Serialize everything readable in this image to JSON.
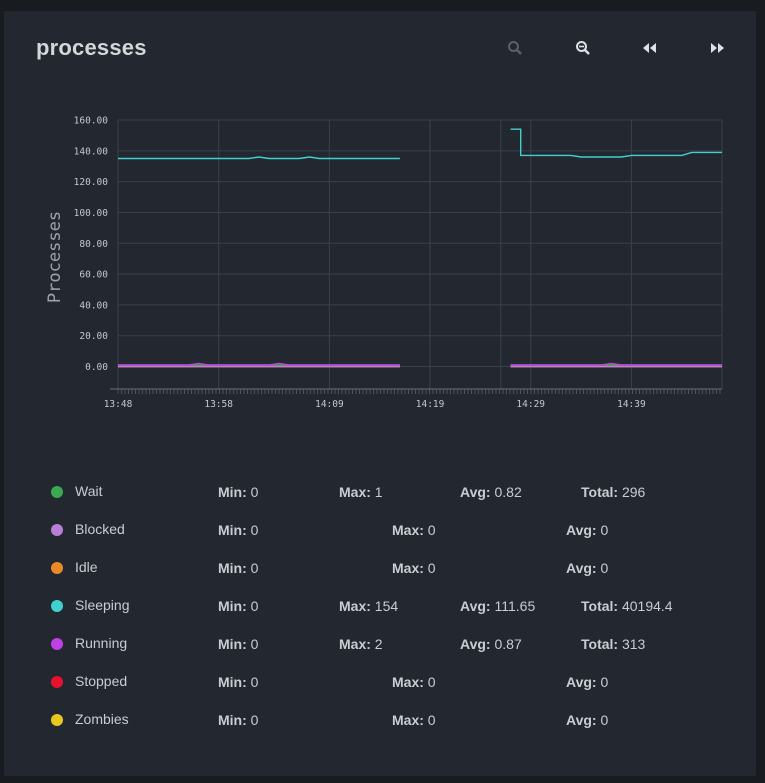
{
  "panel": {
    "title": "processes",
    "toolbar": {
      "zoom_in_icon": "magnifier-plus-icon",
      "zoom_out_icon": "magnifier-minus-icon",
      "back_icon": "rewind-icon",
      "forward_icon": "fast-forward-icon"
    }
  },
  "chart_data": {
    "type": "line",
    "title": "",
    "ylabel": "Processes",
    "xlabel": "",
    "ylim": [
      0,
      160
    ],
    "y_ticks": [
      "0.00",
      "20.00",
      "40.00",
      "60.00",
      "80.00",
      "100.00",
      "120.00",
      "140.00",
      "160.00"
    ],
    "x_ticks": [
      "13:48",
      "13:58",
      "14:09",
      "14:19",
      "14:29",
      "14:39"
    ],
    "x_range": [
      "13:48",
      "14:48"
    ],
    "grid": true,
    "series": [
      {
        "name": "Sleeping",
        "color": "#40d0d0",
        "segments": [
          [
            [
              "13:48",
              135
            ],
            [
              "14:01",
              135
            ],
            [
              "14:02",
              136
            ],
            [
              "14:03",
              135
            ],
            [
              "14:06",
              135
            ],
            [
              "14:07",
              136
            ],
            [
              "14:08",
              135
            ],
            [
              "14:16",
              135
            ]
          ],
          [
            [
              "14:27",
              154
            ],
            [
              "14:28",
              154
            ],
            [
              "14:28",
              137
            ],
            [
              "14:33",
              137
            ],
            [
              "14:34",
              136
            ],
            [
              "14:38",
              136
            ],
            [
              "14:39",
              137
            ],
            [
              "14:42",
              137
            ],
            [
              "14:44",
              137
            ],
            [
              "14:45",
              139
            ],
            [
              "14:48",
              139
            ]
          ]
        ]
      },
      {
        "name": "Running",
        "color": "#c040e8",
        "segments": [
          [
            [
              "13:48",
              1
            ],
            [
              "13:55",
              1
            ],
            [
              "13:56",
              2
            ],
            [
              "13:57",
              1
            ],
            [
              "14:03",
              1
            ],
            [
              "14:04",
              2
            ],
            [
              "14:05",
              1
            ],
            [
              "14:16",
              1
            ]
          ],
          [
            [
              "14:27",
              1
            ],
            [
              "14:36",
              1
            ],
            [
              "14:37",
              2
            ],
            [
              "14:38",
              1
            ],
            [
              "14:48",
              1
            ]
          ]
        ]
      },
      {
        "name": "Wait",
        "color": "#3aaa50",
        "segments": [
          [
            [
              "13:48",
              1
            ],
            [
              "14:16",
              1
            ]
          ],
          [
            [
              "14:27",
              1
            ],
            [
              "14:48",
              1
            ]
          ]
        ]
      },
      {
        "name": "Blocked",
        "color": "#b87fd6",
        "segments": [
          [
            [
              "13:48",
              0
            ],
            [
              "14:16",
              0
            ]
          ],
          [
            [
              "14:27",
              0
            ],
            [
              "14:48",
              0
            ]
          ]
        ]
      },
      {
        "name": "Idle",
        "color": "#e88a28",
        "segments": [
          [
            [
              "13:48",
              0
            ],
            [
              "14:16",
              0
            ]
          ],
          [
            [
              "14:27",
              0
            ],
            [
              "14:48",
              0
            ]
          ]
        ]
      },
      {
        "name": "Stopped",
        "color": "#e8102c",
        "segments": [
          [
            [
              "13:48",
              0
            ],
            [
              "14:16",
              0
            ]
          ],
          [
            [
              "14:27",
              0
            ],
            [
              "14:48",
              0
            ]
          ]
        ]
      },
      {
        "name": "Zombies",
        "color": "#e8c820",
        "segments": [
          [
            [
              "13:48",
              0
            ],
            [
              "14:16",
              0
            ]
          ],
          [
            [
              "14:27",
              0
            ],
            [
              "14:48",
              0
            ]
          ]
        ]
      }
    ]
  },
  "legend": [
    {
      "name": "Wait",
      "color": "#3aaa50",
      "layout": "full",
      "min_label": "Min:",
      "min": "0",
      "max_label": "Max:",
      "max": "1",
      "avg_label": "Avg:",
      "avg": "0.82",
      "total_label": "Total:",
      "total": "296"
    },
    {
      "name": "Blocked",
      "color": "#b87fd6",
      "layout": "short",
      "min_label": "Min:",
      "min": "0",
      "max_label": "Max:",
      "max": "0",
      "avg_label": "Avg:",
      "avg": "0"
    },
    {
      "name": "Idle",
      "color": "#e88a28",
      "layout": "short",
      "min_label": "Min:",
      "min": "0",
      "max_label": "Max:",
      "max": "0",
      "avg_label": "Avg:",
      "avg": "0"
    },
    {
      "name": "Sleeping",
      "color": "#40d0d0",
      "layout": "full",
      "min_label": "Min:",
      "min": "0",
      "max_label": "Max:",
      "max": "154",
      "avg_label": "Avg:",
      "avg": "111.65",
      "total_label": "Total:",
      "total": "40194.4"
    },
    {
      "name": "Running",
      "color": "#c040e8",
      "layout": "full",
      "min_label": "Min:",
      "min": "0",
      "max_label": "Max:",
      "max": "2",
      "avg_label": "Avg:",
      "avg": "0.87",
      "total_label": "Total:",
      "total": "313"
    },
    {
      "name": "Stopped",
      "color": "#e8102c",
      "layout": "short",
      "min_label": "Min:",
      "min": "0",
      "max_label": "Max:",
      "max": "0",
      "avg_label": "Avg:",
      "avg": "0"
    },
    {
      "name": "Zombies",
      "color": "#e8c820",
      "layout": "short",
      "min_label": "Min:",
      "min": "0",
      "max_label": "Max:",
      "max": "0",
      "avg_label": "Avg:",
      "avg": "0"
    }
  ]
}
